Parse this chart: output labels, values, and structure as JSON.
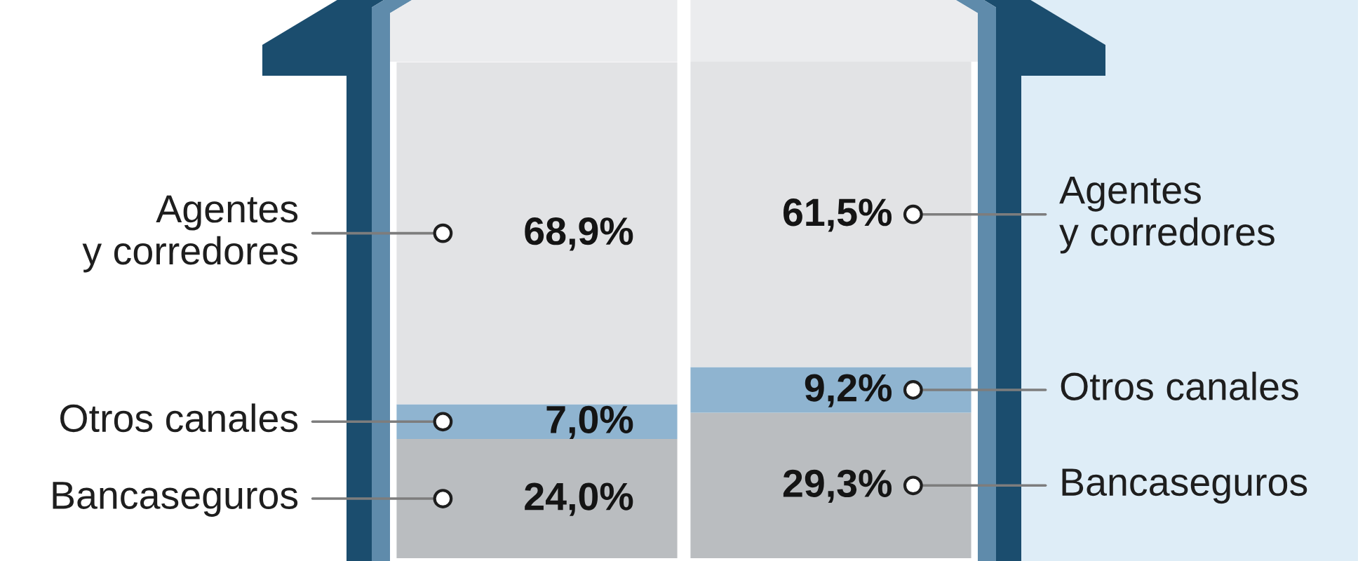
{
  "chart_data": {
    "type": "bar",
    "stacked": true,
    "categories": [
      null,
      null
    ],
    "tick_labels": false,
    "series": [
      {
        "name": "Bancaseguros",
        "color": "#babdc0",
        "values": [
          24.0,
          29.3
        ],
        "value_labels": [
          "24,0%",
          "29,3%"
        ]
      },
      {
        "name": "Otros canales",
        "color": "#8fb4d0",
        "values": [
          7.0,
          9.2
        ],
        "value_labels": [
          "7,0%",
          "9,2%"
        ]
      },
      {
        "name": "Agentes\ny corredores",
        "color": "#e2e3e5",
        "values": [
          68.9,
          61.5
        ],
        "value_labels": [
          "68,9%",
          "61,5%"
        ]
      }
    ]
  }
}
